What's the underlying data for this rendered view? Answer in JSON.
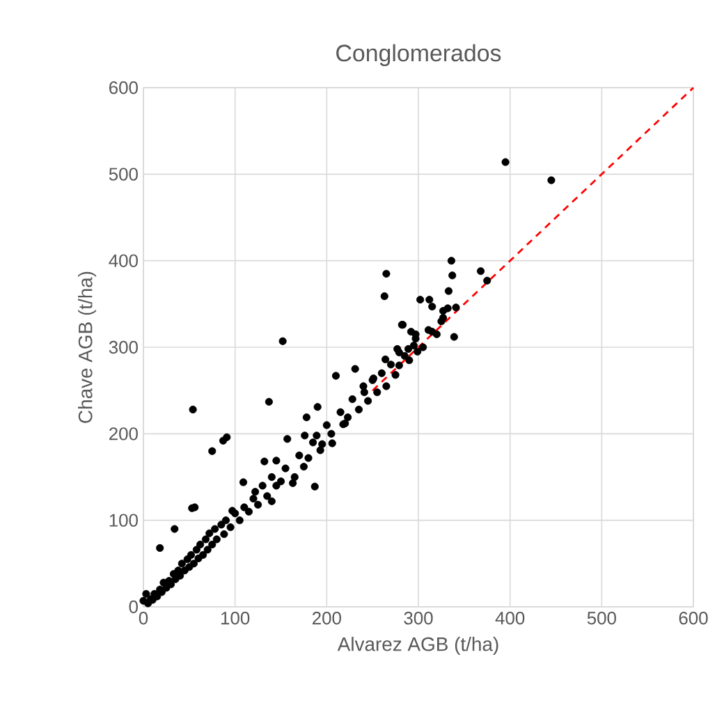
{
  "chart_data": {
    "type": "scatter",
    "title": "Conglomerados",
    "xlabel": "Alvarez AGB (t/ha)",
    "ylabel": "Chave AGB (t/ha)",
    "xlim": [
      0,
      600
    ],
    "ylim": [
      0,
      600
    ],
    "xticks": [
      0,
      100,
      200,
      300,
      400,
      500,
      600
    ],
    "yticks": [
      0,
      100,
      200,
      300,
      400,
      500,
      600
    ],
    "grid": true,
    "series": [
      {
        "type": "line",
        "color": "#ff0000",
        "line_style": "dashed",
        "marker": "none",
        "x": [
          250,
          600
        ],
        "values": [
          250,
          600
        ]
      },
      {
        "color": "#000000",
        "marker": "circle",
        "x": [
          395,
          445,
          336,
          337,
          368,
          375,
          333,
          339,
          302,
          312,
          315,
          327,
          332,
          341,
          327,
          311,
          283,
          292,
          297,
          297,
          289,
          299,
          277,
          279,
          152,
          265,
          263,
          282,
          54,
          137,
          91,
          87,
          75,
          53,
          56,
          187,
          163,
          178,
          190,
          210,
          231,
          109,
          132,
          145,
          157,
          176,
          189,
          193,
          206,
          175,
          218,
          223,
          251,
          264,
          279,
          241,
          140,
          122,
          97,
          34,
          18,
          3,
          0,
          5,
          8,
          10,
          12,
          15,
          18,
          20,
          22,
          25,
          28,
          30,
          33,
          35,
          38,
          40,
          42,
          45,
          48,
          50,
          52,
          55,
          58,
          60,
          62,
          65,
          68,
          70,
          72,
          75,
          78,
          80,
          85,
          88,
          90,
          95,
          100,
          105,
          110,
          115,
          120,
          125,
          130,
          135,
          140,
          145,
          150,
          155,
          165,
          170,
          180,
          185,
          195,
          200,
          205,
          215,
          220,
          228,
          235,
          240,
          245,
          250,
          255,
          260,
          265,
          270,
          275,
          285,
          290,
          295,
          305,
          315,
          320,
          325
        ],
        "values": [
          514,
          493,
          400,
          383,
          388,
          377,
          365,
          312,
          355,
          355,
          347,
          342,
          345,
          346,
          334,
          320,
          326,
          318,
          315,
          310,
          298,
          295,
          298,
          279,
          307,
          385,
          359,
          326,
          228,
          237,
          196,
          192,
          180,
          114,
          115,
          139,
          143,
          219,
          231,
          267,
          275,
          144,
          168,
          169,
          194,
          198,
          198,
          181,
          189,
          162,
          211,
          219,
          264,
          286,
          294,
          248,
          122,
          133,
          111,
          90,
          68,
          15,
          7,
          4,
          9,
          8,
          15,
          12,
          20,
          17,
          28,
          22,
          30,
          26,
          38,
          32,
          42,
          36,
          50,
          42,
          55,
          46,
          60,
          50,
          66,
          56,
          72,
          60,
          78,
          66,
          85,
          72,
          90,
          78,
          95,
          84,
          100,
          92,
          108,
          100,
          115,
          110,
          125,
          118,
          140,
          128,
          150,
          140,
          145,
          160,
          150,
          175,
          172,
          190,
          188,
          210,
          200,
          225,
          212,
          240,
          228,
          255,
          238,
          262,
          248,
          270,
          255,
          280,
          268,
          290,
          285,
          302,
          300,
          318,
          315,
          330
        ]
      }
    ]
  }
}
